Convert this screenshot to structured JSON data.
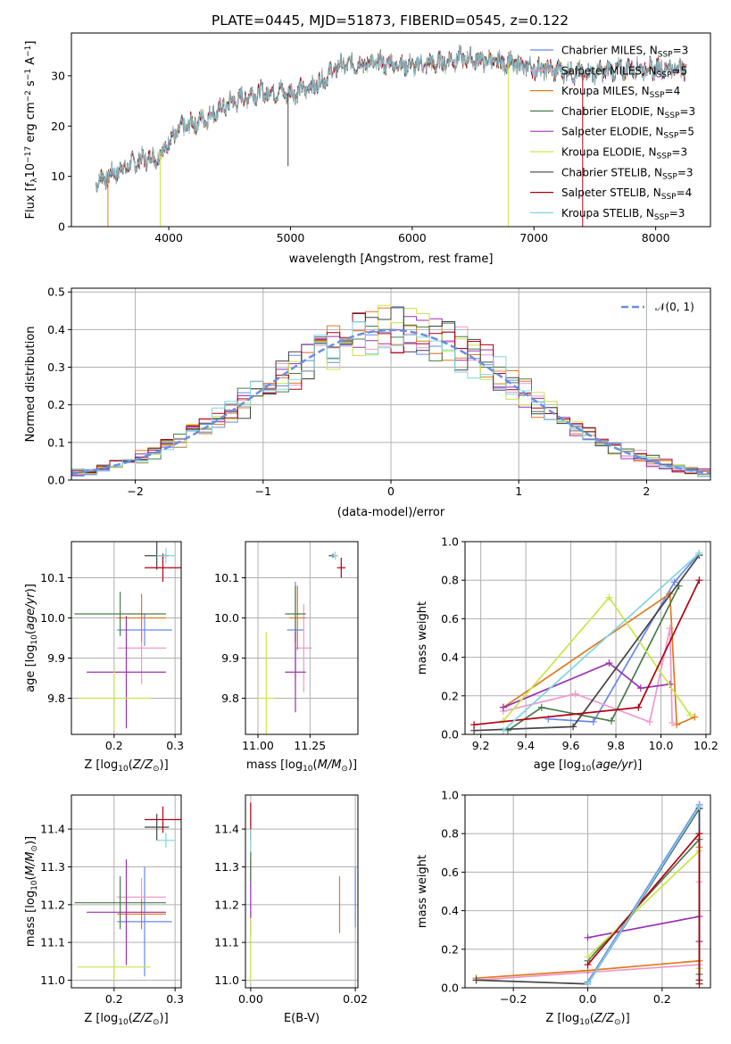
{
  "title": "PLATE=0445, MJD=51873, FIBERID=0545, z=0.122",
  "colors": {
    "chabrier_miles": "#6688ee",
    "salpeter_miles": "#ee99cc",
    "kroupa_miles": "#e07a1f",
    "chabrier_elodie": "#4a7a4a",
    "salpeter_elodie": "#9b30b0",
    "kroupa_elodie": "#c8e64a",
    "chabrier_stelib": "#444444",
    "salpeter_stelib": "#b00010",
    "kroupa_stelib": "#80d4e0",
    "gaussian": "#6a8fe0",
    "grid": "#b0b0b0"
  },
  "chart_data": [
    {
      "type": "line",
      "id": "spectrum",
      "xlabel": "wavelength [Angstrom, rest frame]",
      "ylabel": "Flux [f",
      "ylabel_parts": [
        "Flux [f",
        "λ",
        "10",
        "−17",
        " erg cm",
        "−2",
        " s",
        "−1",
        " A",
        "−1",
        "]"
      ],
      "xlim": [
        3200,
        8450
      ],
      "ylim": [
        0,
        38.5
      ],
      "xticks": [
        "4000",
        "5000",
        "6000",
        "7000",
        "8000"
      ],
      "yticks": [
        "0",
        "10",
        "20",
        "30"
      ],
      "grid": false,
      "legend_position": "right",
      "series": [
        {
          "name": "Chabrier MILES, N",
          "ssp": "3",
          "color": "chabrier_miles"
        },
        {
          "name": "Salpeter MILES, N",
          "ssp": "5",
          "color": "salpeter_miles"
        },
        {
          "name": "Kroupa MILES, N",
          "ssp": "4",
          "color": "kroupa_miles"
        },
        {
          "name": "Chabrier ELODIE, N",
          "ssp": "3",
          "color": "chabrier_elodie"
        },
        {
          "name": "Salpeter ELODIE, N",
          "ssp": "5",
          "color": "salpeter_elodie"
        },
        {
          "name": "Kroupa ELODIE, N",
          "ssp": "3",
          "color": "kroupa_elodie"
        },
        {
          "name": "Chabrier STELIB, N",
          "ssp": "3",
          "color": "chabrier_stelib"
        },
        {
          "name": "Salpeter STELIB, N",
          "ssp": "4",
          "color": "salpeter_stelib"
        },
        {
          "name": "Kroupa STELIB, N",
          "ssp": "3",
          "color": "kroupa_stelib"
        }
      ],
      "continuum": [
        [
          3400,
          9
        ],
        [
          3500,
          10
        ],
        [
          3650,
          12
        ],
        [
          3800,
          13.5
        ],
        [
          3920,
          14
        ],
        [
          4000,
          17
        ],
        [
          4100,
          19.5
        ],
        [
          4300,
          21.5
        ],
        [
          4500,
          24.5
        ],
        [
          4700,
          26.5
        ],
        [
          4900,
          27
        ],
        [
          5000,
          26.5
        ],
        [
          5200,
          28
        ],
        [
          5400,
          32
        ],
        [
          5600,
          32.5
        ],
        [
          5800,
          32.5
        ],
        [
          6000,
          32
        ],
        [
          6200,
          32.5
        ],
        [
          6400,
          33.5
        ],
        [
          6600,
          33
        ],
        [
          6800,
          32.5
        ],
        [
          7000,
          31.5
        ],
        [
          7200,
          31
        ],
        [
          7400,
          30.5
        ],
        [
          7600,
          31
        ],
        [
          7800,
          31.5
        ],
        [
          8000,
          31.5
        ],
        [
          8250,
          31.5
        ]
      ]
    },
    {
      "type": "bar",
      "id": "residual-histograms",
      "xlabel": "(data-model)/error",
      "ylabel": "Normed distribution",
      "xlim": [
        -2.5,
        2.5
      ],
      "ylim": [
        0,
        0.51
      ],
      "xticks": [
        "−2",
        "−1",
        "0",
        "1",
        "2"
      ],
      "yticks": [
        "0.0",
        "0.1",
        "0.2",
        "0.3",
        "0.4",
        "0.5"
      ],
      "grid": true,
      "legend": "𝒩(0, 1)",
      "legend_position": "top-right",
      "bin_width": 0.1,
      "bin_start": -2.5
    },
    {
      "type": "scatter",
      "id": "age-vs-z",
      "xlabel": "Z [log",
      "ylabel": "age  [log",
      "xlim": [
        0.13,
        0.31
      ],
      "ylim": [
        9.71,
        10.19
      ],
      "xticks": [
        "0.2",
        "0.3"
      ],
      "yticks": [
        "9.8",
        "9.9",
        "10.0",
        "10.1"
      ],
      "grid": true,
      "points": [
        {
          "color": "chabrier_miles",
          "x": 0.25,
          "y": 9.97,
          "xerr": 0.045,
          "yerr": 0.04
        },
        {
          "color": "salpeter_miles",
          "x": 0.245,
          "y": 9.925,
          "xerr": 0.04,
          "yerr": 0.09
        },
        {
          "color": "kroupa_miles",
          "x": 0.245,
          "y": 10.0,
          "xerr": 0.04,
          "yerr": 0.06
        },
        {
          "color": "chabrier_elodie",
          "x": 0.21,
          "y": 10.01,
          "xerr": 0.075,
          "yerr": 0.055
        },
        {
          "color": "salpeter_elodie",
          "x": 0.22,
          "y": 9.865,
          "xerr": 0.065,
          "yerr": 0.14
        },
        {
          "color": "kroupa_elodie",
          "x": 0.2,
          "y": 9.8,
          "xerr": 0.06,
          "yerr": 0.08
        },
        {
          "color": "chabrier_stelib",
          "x": 0.27,
          "y": 10.155,
          "xerr": 0.02,
          "yerr": 0.035
        },
        {
          "color": "salpeter_stelib",
          "x": 0.28,
          "y": 10.125,
          "xerr": 0.03,
          "yerr": 0.035
        },
        {
          "color": "kroupa_stelib",
          "x": 0.285,
          "y": 10.155,
          "xerr": 0.015,
          "yerr": 0.02
        }
      ]
    },
    {
      "type": "scatter",
      "id": "age-vs-mass",
      "xlabel": "mass [log",
      "xlim": [
        10.94,
        11.48
      ],
      "ylim": [
        9.71,
        10.19
      ],
      "xticks": [
        "11.00",
        "11.25"
      ],
      "yticks": [
        "9.8",
        "9.9",
        "10.0",
        "10.1"
      ],
      "grid": true,
      "points": [
        {
          "color": "chabrier_miles",
          "x": 11.18,
          "y": 9.97,
          "xerr": 0.04,
          "yerr": 0.12
        },
        {
          "color": "salpeter_miles",
          "x": 11.22,
          "y": 9.925,
          "xerr": 0.04,
          "yerr": 0.11
        },
        {
          "color": "kroupa_miles",
          "x": 11.19,
          "y": 10.0,
          "xerr": 0.04,
          "yerr": 0.08
        },
        {
          "color": "chabrier_elodie",
          "x": 11.18,
          "y": 10.01,
          "xerr": 0.05,
          "yerr": 0.07
        },
        {
          "color": "salpeter_elodie",
          "x": 11.18,
          "y": 9.865,
          "xerr": 0.05,
          "yerr": 0.1
        },
        {
          "color": "kroupa_elodie",
          "x": 11.04,
          "y": 9.8,
          "xerr": 0.04,
          "yerr": 0.165
        },
        {
          "color": "chabrier_stelib",
          "x": 11.36,
          "y": 10.155,
          "xerr": 0.02,
          "yerr": 0.005
        },
        {
          "color": "salpeter_stelib",
          "x": 11.4,
          "y": 10.125,
          "xerr": 0.02,
          "yerr": 0.025
        },
        {
          "color": "kroupa_stelib",
          "x": 11.37,
          "y": 10.155,
          "xerr": 0.015,
          "yerr": 0.01
        }
      ]
    },
    {
      "type": "line",
      "id": "mass-weight-vs-age",
      "xlabel": "age  [log",
      "ylabel": "mass weight",
      "xlim": [
        9.13,
        10.22
      ],
      "ylim": [
        0,
        1
      ],
      "xticks": [
        "9.2",
        "9.4",
        "9.6",
        "9.8",
        "10.0",
        "10.2"
      ],
      "yticks": [
        "0.0",
        "0.2",
        "0.4",
        "0.6",
        "0.8",
        "1.0"
      ],
      "grid": true,
      "series": [
        {
          "color": "chabrier_miles",
          "x": [
            9.5,
            9.7,
            10.06,
            10.17
          ],
          "y": [
            0.08,
            0.065,
            0.79,
            0.94
          ]
        },
        {
          "color": "salpeter_miles",
          "x": [
            9.3,
            9.62,
            9.95,
            10.04,
            10.05
          ],
          "y": [
            0.12,
            0.21,
            0.065,
            0.55,
            0.06
          ]
        },
        {
          "color": "kroupa_miles",
          "x": [
            9.3,
            10.04,
            10.07,
            10.15
          ],
          "y": [
            0.14,
            0.73,
            0.05,
            0.09
          ]
        },
        {
          "color": "chabrier_elodie",
          "x": [
            9.32,
            9.47,
            9.78,
            10.08
          ],
          "y": [
            0.02,
            0.14,
            0.07,
            0.77
          ]
        },
        {
          "color": "salpeter_elodie",
          "x": [
            9.3,
            9.77,
            9.91,
            10.04
          ],
          "y": [
            0.14,
            0.37,
            0.24,
            0.26
          ]
        },
        {
          "color": "kroupa_elodie",
          "x": [
            9.3,
            9.77,
            10.13
          ],
          "y": [
            0.07,
            0.71,
            0.1
          ]
        },
        {
          "color": "chabrier_stelib",
          "x": [
            9.17,
            9.61,
            10.17
          ],
          "y": [
            0.02,
            0.04,
            0.93
          ]
        },
        {
          "color": "salpeter_stelib",
          "x": [
            9.17,
            9.9,
            10.17
          ],
          "y": [
            0.05,
            0.14,
            0.8
          ]
        },
        {
          "color": "kroupa_stelib",
          "x": [
            9.3,
            10.17
          ],
          "y": [
            0.02,
            0.94
          ]
        }
      ]
    },
    {
      "type": "scatter",
      "id": "mass-vs-z",
      "xlabel": "Z [log",
      "ylabel": "mass [log",
      "xlim": [
        0.13,
        0.31
      ],
      "ylim": [
        10.98,
        11.49
      ],
      "xticks": [
        "0.2",
        "0.3"
      ],
      "yticks": [
        "11.0",
        "11.1",
        "11.2",
        "11.3",
        "11.4"
      ],
      "grid": true,
      "points": [
        {
          "color": "chabrier_miles",
          "x": 0.25,
          "y": 11.155,
          "xerr": 0.045,
          "yerr": 0.145
        },
        {
          "color": "salpeter_miles",
          "x": 0.245,
          "y": 11.22,
          "xerr": 0.04,
          "yerr": 0.05
        },
        {
          "color": "kroupa_miles",
          "x": 0.245,
          "y": 11.175,
          "xerr": 0.04,
          "yerr": 0.04
        },
        {
          "color": "chabrier_elodie",
          "x": 0.21,
          "y": 11.205,
          "xerr": 0.075,
          "yerr": 0.07
        },
        {
          "color": "salpeter_elodie",
          "x": 0.22,
          "y": 11.18,
          "xerr": 0.065,
          "yerr": 0.14
        },
        {
          "color": "kroupa_elodie",
          "x": 0.2,
          "y": 11.035,
          "xerr": 0.06,
          "yerr": 0.035
        },
        {
          "color": "chabrier_stelib",
          "x": 0.27,
          "y": 11.405,
          "xerr": 0.02,
          "yerr": 0.035
        },
        {
          "color": "salpeter_stelib",
          "x": 0.28,
          "y": 11.425,
          "xerr": 0.03,
          "yerr": 0.035
        },
        {
          "color": "kroupa_stelib",
          "x": 0.285,
          "y": 11.37,
          "xerr": 0.015,
          "yerr": 0.02
        }
      ]
    },
    {
      "type": "scatter",
      "id": "mass-vs-ebv",
      "xlabel": "E(B-V)",
      "xlim": [
        -0.001,
        0.0205
      ],
      "ylim": [
        10.98,
        11.49
      ],
      "xticks": [
        "0.00",
        "0.02"
      ],
      "yticks": [
        "11.0",
        "11.1",
        "11.2",
        "11.3",
        "11.4"
      ],
      "grid": true,
      "points": [
        {
          "color": "chabrier_miles",
          "x": 0.02,
          "y": 11.22,
          "xerr": 0,
          "yerr": 0.08
        },
        {
          "color": "kroupa_miles",
          "x": 0.017,
          "y": 11.2,
          "xerr": 0,
          "yerr": 0.075
        },
        {
          "color": "salpeter_elodie",
          "x": 0.0,
          "y": 11.22,
          "xerr": 0,
          "yerr": 0.1
        },
        {
          "color": "kroupa_elodie",
          "x": 0.0,
          "y": 11.08,
          "xerr": 0,
          "yerr": 0.085
        },
        {
          "color": "salpeter_stelib",
          "x": 0.0,
          "y": 11.42,
          "xerr": 0,
          "yerr": 0.05
        },
        {
          "color": "kroupa_stelib",
          "x": 0.0,
          "y": 11.37,
          "xerr": 0,
          "yerr": 0.03
        },
        {
          "color": "chabrier_elodie",
          "x": 0.0,
          "y": 11.3,
          "xerr": 0,
          "yerr": 0.04
        }
      ]
    },
    {
      "type": "line",
      "id": "mass-weight-vs-z",
      "xlabel": "Z [log",
      "ylabel": "mass weight",
      "xlim": [
        -0.33,
        0.33
      ],
      "ylim": [
        0,
        1
      ],
      "xticks": [
        "−0.2",
        "0.0",
        "0.2"
      ],
      "yticks": [
        "0.0",
        "0.2",
        "0.4",
        "0.6",
        "0.8",
        "1.0"
      ],
      "grid": true,
      "series": [
        {
          "color": "chabrier_miles",
          "x": [
            0.0,
            0.3,
            0.3
          ],
          "y": [
            0.03,
            0.95,
            0.1
          ]
        },
        {
          "color": "salpeter_miles",
          "x": [
            -0.3,
            0.0,
            0.3,
            0.3
          ],
          "y": [
            0.04,
            0.08,
            0.12,
            0.55
          ]
        },
        {
          "color": "kroupa_miles",
          "x": [
            -0.3,
            0.0,
            0.3,
            0.3
          ],
          "y": [
            0.05,
            0.09,
            0.14,
            0.73
          ]
        },
        {
          "color": "chabrier_elodie",
          "x": [
            0.0,
            0.3,
            0.3
          ],
          "y": [
            0.14,
            0.77,
            0.07
          ]
        },
        {
          "color": "salpeter_elodie",
          "x": [
            0.0,
            0.3,
            0.3
          ],
          "y": [
            0.26,
            0.37,
            0.24
          ]
        },
        {
          "color": "kroupa_elodie",
          "x": [
            0.0,
            0.3,
            0.3
          ],
          "y": [
            0.16,
            0.71,
            0.1
          ]
        },
        {
          "color": "chabrier_stelib",
          "x": [
            -0.3,
            0.0,
            0.3,
            0.3
          ],
          "y": [
            0.04,
            0.02,
            0.93,
            0.04
          ]
        },
        {
          "color": "salpeter_stelib",
          "x": [
            0.0,
            0.3,
            0.3
          ],
          "y": [
            0.12,
            0.8,
            0.02
          ]
        },
        {
          "color": "kroupa_stelib",
          "x": [
            0.0,
            0.3
          ],
          "y": [
            0.02,
            0.94
          ]
        }
      ]
    }
  ]
}
